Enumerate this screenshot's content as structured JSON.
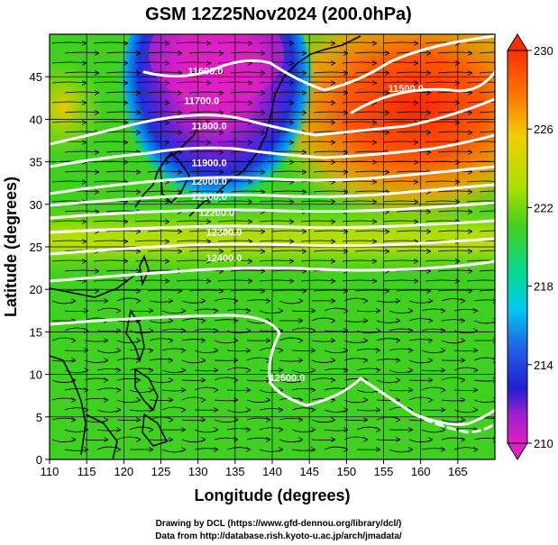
{
  "title": "GSM 12Z25Nov2024 (200.0hPa)",
  "axes": {
    "xlabel": "Longitude (degrees)",
    "ylabel": "Latitude  (degrees)",
    "xlim": [
      110,
      170
    ],
    "ylim": [
      0,
      50
    ],
    "xticks": [
      "110",
      "115",
      "120",
      "125",
      "130",
      "135",
      "140",
      "145",
      "150",
      "155",
      "160",
      "165"
    ],
    "yticks": [
      "0",
      "5",
      "10",
      "15",
      "20",
      "25",
      "30",
      "35",
      "40",
      "45"
    ]
  },
  "colorbar": {
    "range": [
      210,
      230
    ],
    "ticks": [
      "230",
      "226",
      "222",
      "218",
      "214",
      "210"
    ]
  },
  "contour_labels": [
    {
      "text": "11600.0",
      "lon": 131,
      "lat": 45.3
    },
    {
      "text": "11700.0",
      "lon": 130.5,
      "lat": 41.8
    },
    {
      "text": "11800.0",
      "lon": 131.5,
      "lat": 38.8
    },
    {
      "text": "11900.0",
      "lon": 131.5,
      "lat": 34.5
    },
    {
      "text": "12000.0",
      "lon": 131.5,
      "lat": 32.3
    },
    {
      "text": "12100.0",
      "lon": 131.5,
      "lat": 30.5
    },
    {
      "text": "12200.0",
      "lon": 132.5,
      "lat": 28.6
    },
    {
      "text": "12300.0",
      "lon": 133.5,
      "lat": 26.3
    },
    {
      "text": "12400.0",
      "lon": 133.5,
      "lat": 23.3
    },
    {
      "text": "11500.0",
      "lon": 158,
      "lat": 43.2
    },
    {
      "text": "12500.0",
      "lon": 142,
      "lat": 9.2
    }
  ],
  "credits": {
    "line1": "Drawing by DCL (https://www.gfd-dennou.org/library/dcl/)",
    "line2": "Data from http://database.rish.kyoto-u.ac.jp/arch/jmadata/"
  },
  "chart_data": {
    "type": "heatmap",
    "title": "GSM 12Z25Nov2024 (200.0hPa)",
    "xlabel": "Longitude (degrees)",
    "ylabel": "Latitude  (degrees)",
    "xlim": [
      110,
      170
    ],
    "ylim": [
      0,
      50
    ],
    "colorbar_range": [
      210,
      230
    ],
    "colorbar_ticks": [
      210,
      214,
      218,
      222,
      226,
      230
    ],
    "colors": {
      "min": "#e020c0",
      "low": "#2020d0",
      "mid_low": "#00c8f0",
      "mid": "#40d020",
      "mid_high": "#f0d000",
      "high": "#ff3000"
    },
    "grid": true
  }
}
